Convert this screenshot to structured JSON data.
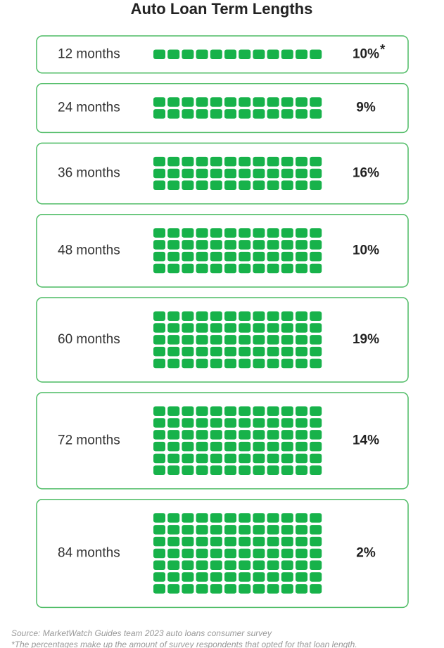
{
  "title": "Auto Loan Term Lengths",
  "rows": [
    {
      "label": "12 months",
      "months": 12,
      "percent": "10%",
      "marker": "*"
    },
    {
      "label": "24 months",
      "months": 24,
      "percent": "9%"
    },
    {
      "label": "36 months",
      "months": 36,
      "percent": "16%"
    },
    {
      "label": "48 months",
      "months": 48,
      "percent": "10%"
    },
    {
      "label": "60 months",
      "months": 60,
      "percent": "19%"
    },
    {
      "label": "72 months",
      "months": 72,
      "percent": "14%"
    },
    {
      "label": "84 months",
      "months": 84,
      "percent": "2%"
    }
  ],
  "source": "Source: MarketWatch Guides team 2023 auto loans consumer survey",
  "footnote": "*The percentages make up the amount of survey respondents that opted for that loan length."
}
